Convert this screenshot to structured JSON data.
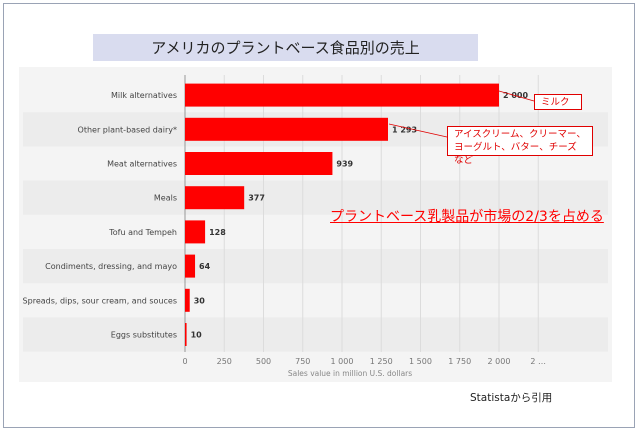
{
  "title": "アメリカのプラントベース食品別の売上",
  "source": "Statistaから引用",
  "headline": "プラントベース乳製品が市場の2/3を占める",
  "notes": {
    "milk": "ミルク",
    "dairy_line1": "アイスクリーム、クリーマー、",
    "dairy_line2": "ヨーグルト、バター、チーズなど"
  },
  "colors": {
    "bar": "#ff0000",
    "note": "#e00000",
    "title_bg": "#d9dcef"
  },
  "chart_data": {
    "type": "bar",
    "orientation": "horizontal",
    "categories": [
      "Milk alternatives",
      "Other plant-based dairy*",
      "Meat alternatives",
      "Meals",
      "Tofu and Tempeh",
      "Condiments, dressing, and mayo",
      "Spreads, dips, sour cream, and souces",
      "Eggs substitutes"
    ],
    "values": [
      2000,
      1293,
      939,
      377,
      128,
      64,
      30,
      10
    ],
    "value_labels": [
      "2 000",
      "1 293",
      "939",
      "377",
      "128",
      "64",
      "30",
      "10"
    ],
    "xticks": [
      "0",
      "250",
      "500",
      "750",
      "1 000",
      "1 250",
      "1 500",
      "1 750",
      "2 000",
      "2 …"
    ],
    "xlim": [
      0,
      2250
    ],
    "xlabel": "Sales value in million U.S. dollars",
    "grid": true
  }
}
